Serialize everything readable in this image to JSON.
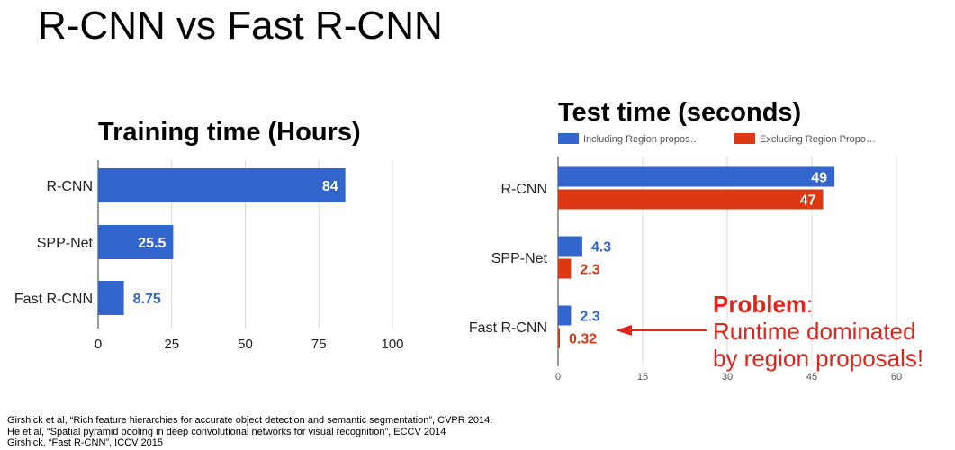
{
  "slide": {
    "title": "R-CNN vs Fast R-CNN"
  },
  "chart_data": [
    {
      "type": "bar",
      "orientation": "horizontal",
      "title": "Training time (Hours)",
      "categories": [
        "R-CNN",
        "SPP-Net",
        "Fast R-CNN"
      ],
      "series": [
        {
          "values": [
            84,
            25.5,
            8.75
          ],
          "labels": [
            "84",
            "25.5",
            "8.75"
          ],
          "color": "#3366cc"
        }
      ],
      "xlim": [
        0,
        100
      ],
      "xticks": [
        "0",
        "25",
        "50",
        "75",
        "100"
      ],
      "grid": true,
      "legend": "none"
    },
    {
      "type": "bar",
      "orientation": "horizontal",
      "title": "Test time (seconds)",
      "categories": [
        "R-CNN",
        "SPP-Net",
        "Fast R-CNN"
      ],
      "series": [
        {
          "name": "Including Region propos…",
          "values": [
            49,
            4.3,
            2.3
          ],
          "labels": [
            "49",
            "4.3",
            "2.3"
          ],
          "color": "#3366cc"
        },
        {
          "name": "Excluding Region Propo…",
          "values": [
            47,
            2.3,
            0.32
          ],
          "labels": [
            "47",
            "2.3",
            "0.32"
          ],
          "color": "#dc3912"
        }
      ],
      "xlim": [
        0,
        60
      ],
      "xticks": [
        "0",
        "15",
        "30",
        "45",
        "60"
      ],
      "grid": true,
      "legend": "top"
    }
  ],
  "annotation": {
    "problem_label": "Problem",
    "problem_colon": ":",
    "line1": "Runtime dominated",
    "line2": "by region proposals!",
    "color": "#e2231a"
  },
  "references": [
    "Girshick et al, “Rich feature hierarchies for accurate object detection and semantic segmentation”, CVPR 2014.",
    "He et al, “Spatial pyramid pooling in deep convolutional networks for visual recognition”, ECCV 2014",
    "Girshick, “Fast R-CNN”, ICCV 2015"
  ]
}
